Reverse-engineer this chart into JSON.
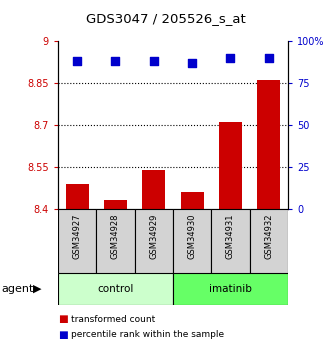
{
  "title": "GDS3047 / 205526_s_at",
  "samples": [
    "GSM34927",
    "GSM34928",
    "GSM34929",
    "GSM34930",
    "GSM34931",
    "GSM34932"
  ],
  "bar_values": [
    8.49,
    8.43,
    8.54,
    8.46,
    8.71,
    8.86
  ],
  "scatter_values": [
    88,
    88,
    88,
    87,
    90,
    90
  ],
  "ylim_left": [
    8.4,
    9.0
  ],
  "ylim_right": [
    0,
    100
  ],
  "yticks_left": [
    8.4,
    8.55,
    8.7,
    8.85,
    9.0
  ],
  "yticks_right": [
    0,
    25,
    50,
    75,
    100
  ],
  "hlines": [
    8.55,
    8.7,
    8.85
  ],
  "bar_color": "#cc0000",
  "scatter_color": "#0000cc",
  "control_label": "control",
  "imatinib_label": "imatinib",
  "agent_label": "agent",
  "legend_bar_label": "transformed count",
  "legend_scatter_label": "percentile rank within the sample",
  "control_color": "#ccffcc",
  "imatinib_color": "#66ff66",
  "tick_color_left": "#cc0000",
  "tick_color_right": "#0000cc",
  "bar_width": 0.6,
  "scatter_size": 30,
  "bar_bottom": 8.4,
  "sample_box_color": "#d3d3d3"
}
